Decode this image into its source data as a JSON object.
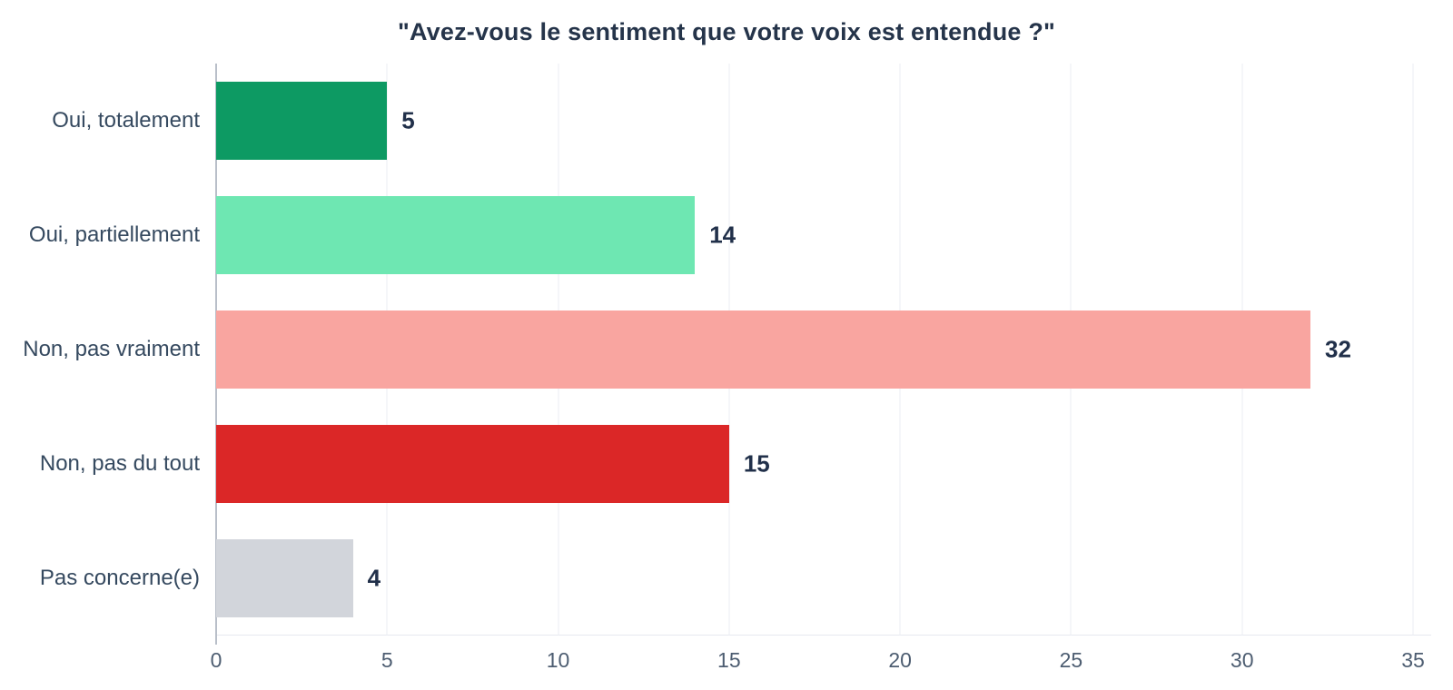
{
  "chart_data": {
    "type": "bar",
    "orientation": "horizontal",
    "title": "\"Avez-vous le sentiment que votre voix est entendue ?\"",
    "categories": [
      "Oui, totalement",
      "Oui, partiellement",
      "Non, pas vraiment",
      "Non, pas du tout",
      "Pas concerne(e)"
    ],
    "values": [
      5,
      14,
      32,
      15,
      4
    ],
    "bar_colors": [
      "#0d9a63",
      "#6ee7b2",
      "#f9a5a0",
      "#db2727",
      "#d2d5db"
    ],
    "xlabel": "",
    "ylabel": "",
    "xlim": [
      0,
      35
    ],
    "x_ticks": [
      0,
      5,
      10,
      15,
      20,
      25,
      30,
      35
    ],
    "grid": "vertical-light",
    "legend": "none"
  },
  "colors": {
    "background": "#ffffff",
    "title_text": "#25344a",
    "category_text": "#35495f",
    "value_text": "#21304a",
    "tick_text": "#4d5d71",
    "gridline": "#ebedf3",
    "axis_line": "#b9bfc9",
    "baseline": "#e6e9ef"
  }
}
